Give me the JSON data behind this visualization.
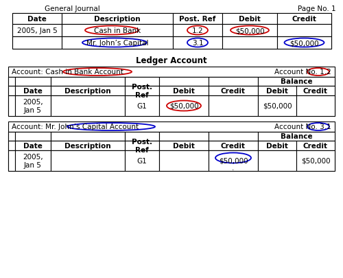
{
  "title_left": "General Journal",
  "title_right": "Page No. 1",
  "ledger_title": "Ledger Account",
  "bg_color": "#ffffff",
  "gj_headers": [
    "Date",
    "Description",
    "Post. Ref",
    "Debit",
    "Credit"
  ],
  "gj_row1": [
    "2005, Jan 5",
    "Cash in Bank",
    "1.2",
    "$50,000",
    ""
  ],
  "gj_row2": [
    "",
    "Mr. John’s Capital",
    "3.1",
    "",
    "$50,000"
  ],
  "l1_account_text": "Account: Cash in Bank Account",
  "l1_no_text": "Account No. 1.2",
  "l1_data": [
    "2005,\nJan 5",
    "",
    "G1",
    "$50,000",
    "",
    "$50,000",
    ""
  ],
  "l2_account_text": "Account: Mr. John’s Capital Account",
  "l2_no_text": "Account No. 3.1",
  "l2_data": [
    "2005,\nJan 5",
    "",
    "G1",
    "",
    "$50,000",
    "",
    "$50,000"
  ],
  "ledger_hdrs": [
    "Date",
    "Description",
    "Post.\nRef",
    "Debit",
    "Credit",
    "Debit",
    "Credit"
  ],
  "red": "#cc0000",
  "blue": "#0000cc",
  "black": "#000000",
  "white": "#ffffff",
  "fs": 7.5,
  "fs_title": 8.5,
  "lw": 0.8
}
